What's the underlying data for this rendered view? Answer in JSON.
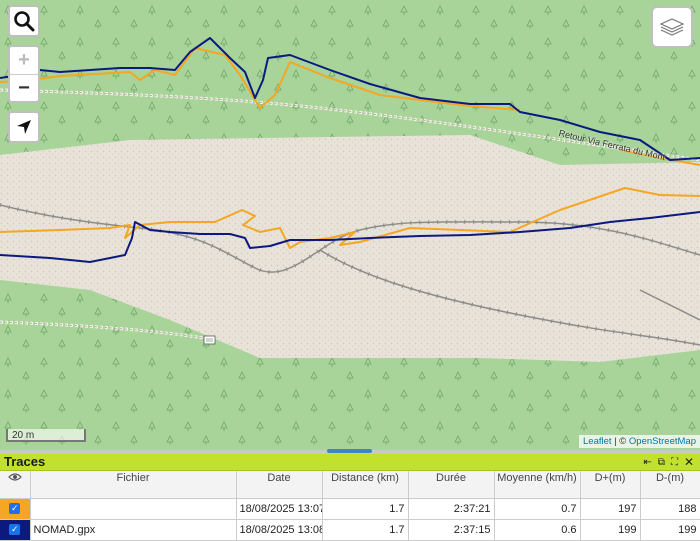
{
  "map": {
    "path_label": "Retour Via Ferrata du Mont",
    "scale_label": "20 m",
    "attribution": {
      "leaflet": "Leaflet",
      "separator": " | © ",
      "osm": "OpenStreetMap"
    },
    "colors": {
      "track_orange": "#f5a623",
      "track_navy": "#0c1a80",
      "forest": "#a8d49a",
      "scree": "#e8e2d8"
    }
  },
  "controls": {
    "zoom_in": "+",
    "zoom_out": "−"
  },
  "traces": {
    "title": "Traces",
    "columns": {
      "file": "Fichier",
      "date": "Date",
      "distance": "Distance (km)",
      "duration": "Durée",
      "average": "Moyenne (km/h)",
      "dplus": "D+(m)",
      "dminus": "D-(m)"
    },
    "rows": [
      {
        "color": "#f5a623",
        "file": "",
        "date": "18/08/2025 13:07",
        "distance": "1.7",
        "duration": "2:37:21",
        "average": "0.7",
        "dplus": "197",
        "dminus": "188"
      },
      {
        "color": "#0c1a80",
        "file": "NOMAD.gpx",
        "date": "18/08/2025 13:08",
        "distance": "1.7",
        "duration": "2:37:15",
        "average": "0.6",
        "dplus": "199",
        "dminus": "199"
      }
    ]
  }
}
